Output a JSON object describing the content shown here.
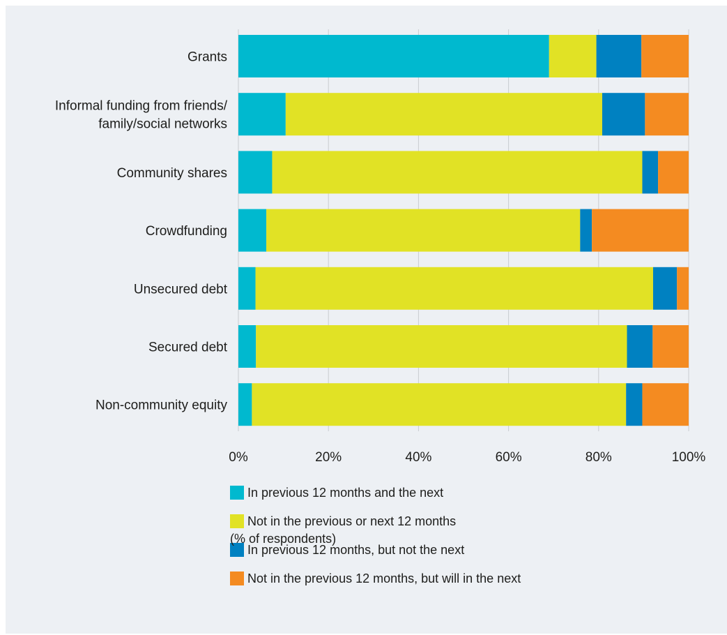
{
  "chart_data": {
    "type": "bar",
    "orientation": "horizontal",
    "stacked": true,
    "categories": [
      "Grants",
      [
        "Informal funding from friends/",
        "family/social networks"
      ],
      "Community shares",
      "Crowdfunding",
      "Unsecured debt",
      "Secured debt",
      "Non-community equity"
    ],
    "series": [
      {
        "name": "In previous 12 months and the next",
        "color": "#00b9cf",
        "values": [
          69,
          10.5,
          7.5,
          6.2,
          3.8,
          3.9,
          3
        ]
      },
      {
        "name": "Not in the previous or next 12 months",
        "color": "#e1e225",
        "values": [
          10.5,
          70.3,
          82.2,
          69.7,
          88.3,
          82.4,
          83.1
        ]
      },
      {
        "name": "In previous 12 months, but not the next",
        "color": "#0081c1",
        "values": [
          10,
          9.5,
          3.5,
          2.6,
          5.3,
          5.7,
          3.6
        ]
      },
      {
        "name": "Not in the previous 12 months, but will in the next",
        "color": "#f48b21",
        "values": [
          10.5,
          9.7,
          6.8,
          21.5,
          2.6,
          8,
          10.3
        ]
      }
    ],
    "xlim": [
      0,
      100
    ],
    "xticks": [
      "0%",
      "20%",
      "40%",
      "60%",
      "80%",
      "100%"
    ],
    "grid": true,
    "legend_position": "bottom",
    "footnote": "(% of respondents)"
  }
}
